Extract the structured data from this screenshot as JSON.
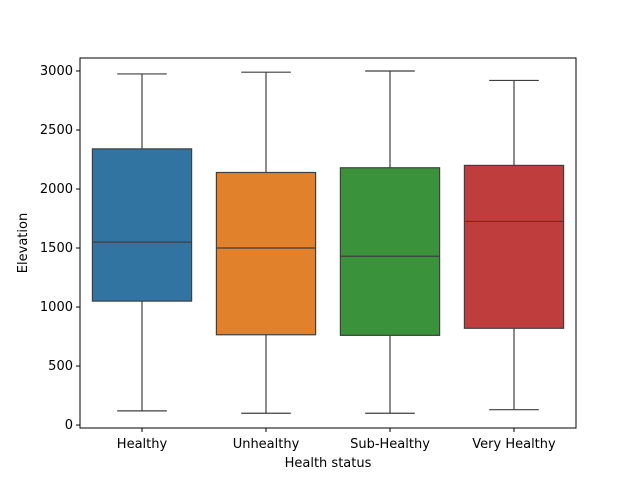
{
  "chart_data": {
    "type": "box",
    "title": "",
    "xlabel": "Health status",
    "ylabel": "Elevation",
    "ylim": [
      -25,
      3110
    ],
    "yticks": [
      0,
      500,
      1000,
      1500,
      2000,
      2500,
      3000
    ],
    "grid": false,
    "categories": [
      "Healthy",
      "Unhealthy",
      "Sub-Healthy",
      "Very Healthy"
    ],
    "boxes": [
      {
        "category": "Healthy",
        "min": 120,
        "q1": 1050,
        "median": 1550,
        "q3": 2340,
        "max": 2975,
        "color": "#3274a1"
      },
      {
        "category": "Unhealthy",
        "min": 100,
        "q1": 765,
        "median": 1500,
        "q3": 2140,
        "max": 2990,
        "color": "#e1812c"
      },
      {
        "category": "Sub-Healthy",
        "min": 100,
        "q1": 760,
        "median": 1430,
        "q3": 2180,
        "max": 3000,
        "color": "#3a923a"
      },
      {
        "category": "Very Healthy",
        "min": 130,
        "q1": 820,
        "median": 1725,
        "q3": 2200,
        "max": 2920,
        "color": "#c03d3e"
      }
    ]
  }
}
